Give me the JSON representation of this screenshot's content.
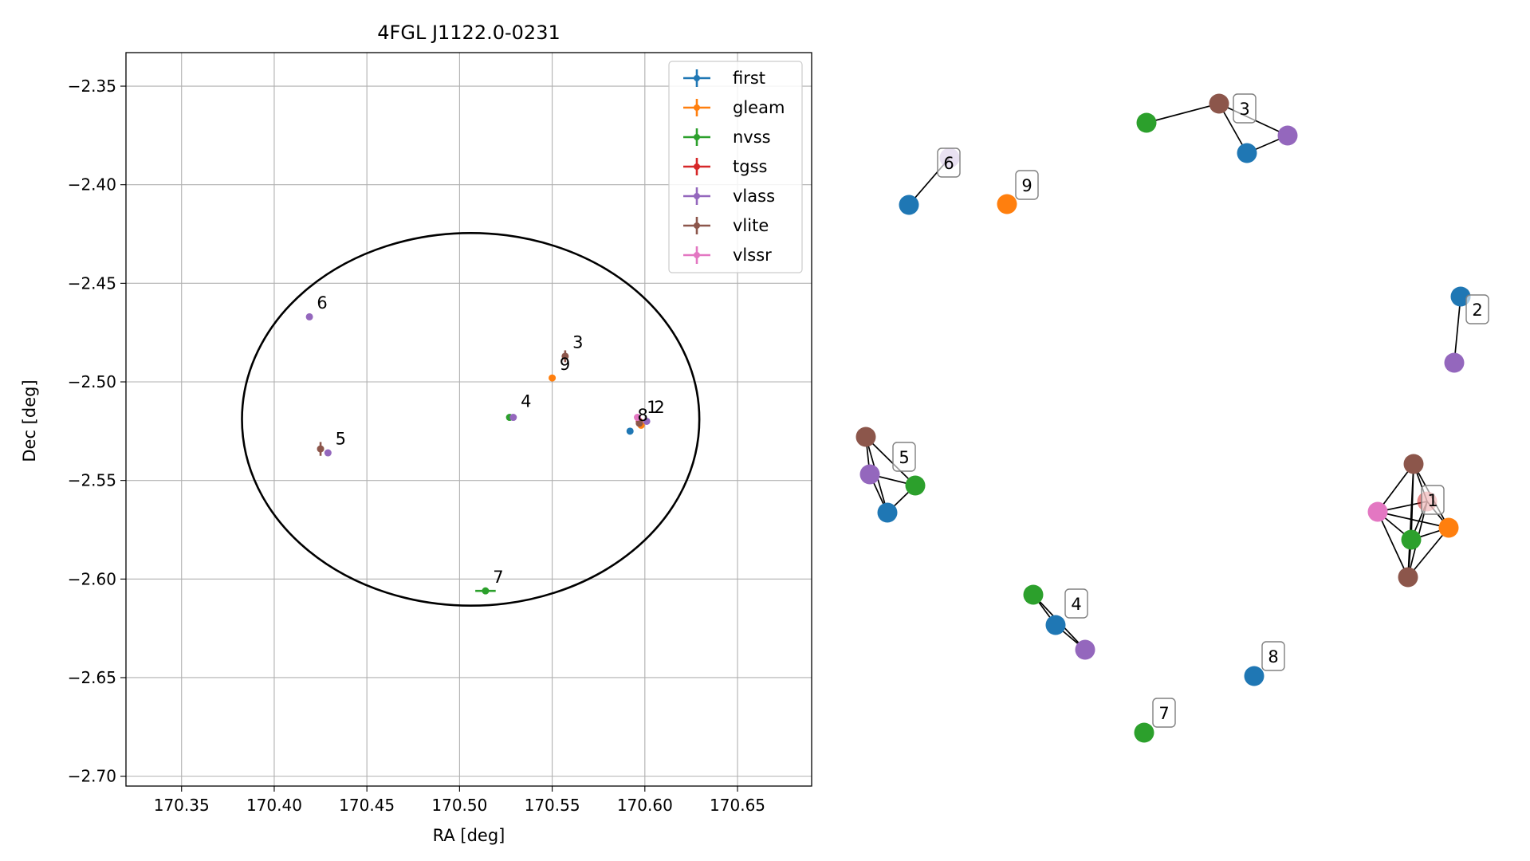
{
  "chart_data": [
    {
      "type": "scatter",
      "title": "4FGL J1122.0-0231",
      "xlabel": "RA [deg]",
      "ylabel": "Dec [deg]",
      "xlim": [
        170.32,
        170.69
      ],
      "ylim": [
        -2.705,
        -2.333
      ],
      "xticks": [
        170.35,
        170.4,
        170.45,
        170.5,
        170.55,
        170.6,
        170.65
      ],
      "xtick_labels": [
        "170.35",
        "170.40",
        "170.45",
        "170.50",
        "170.55",
        "170.60",
        "170.65"
      ],
      "yticks": [
        -2.35,
        -2.4,
        -2.45,
        -2.5,
        -2.55,
        -2.6,
        -2.65,
        -2.7
      ],
      "ytick_labels": [
        "−2.35",
        "−2.40",
        "−2.45",
        "−2.50",
        "−2.55",
        "−2.60",
        "−2.65",
        "−2.70"
      ],
      "grid": true,
      "legend_position": "top-right",
      "ellipse": {
        "center": [
          170.506,
          -2.519
        ],
        "semi_axis_ra": 0.1234,
        "semi_axis_dec": 0.0945
      },
      "series": [
        {
          "name": "first",
          "color": "#1f77b4",
          "points": [
            {
              "x": 170.592,
              "y": -2.525,
              "xerr": 0,
              "yerr": 0
            }
          ]
        },
        {
          "name": "gleam",
          "color": "#ff7f0e",
          "points": [
            {
              "x": 170.55,
              "y": -2.498,
              "xerr": 0,
              "yerr": 0
            },
            {
              "x": 170.598,
              "y": -2.522,
              "xerr": 0,
              "yerr": 0
            }
          ]
        },
        {
          "name": "nvss",
          "color": "#2ca02c",
          "points": [
            {
              "x": 170.527,
              "y": -2.518,
              "xerr": 0,
              "yerr": 0
            },
            {
              "x": 170.514,
              "y": -2.606,
              "xerr": 0.0055,
              "yerr": 0
            }
          ]
        },
        {
          "name": "tgss",
          "color": "#d62728",
          "points": [
            {
              "x": 170.597,
              "y": -2.52,
              "xerr": 0,
              "yerr": 0
            }
          ]
        },
        {
          "name": "vlass",
          "color": "#9467bd",
          "points": [
            {
              "x": 170.419,
              "y": -2.467,
              "xerr": 0,
              "yerr": 0
            },
            {
              "x": 170.429,
              "y": -2.536,
              "xerr": 0,
              "yerr": 0
            },
            {
              "x": 170.529,
              "y": -2.518,
              "xerr": 0,
              "yerr": 0
            },
            {
              "x": 170.601,
              "y": -2.52,
              "xerr": 0,
              "yerr": 0
            }
          ]
        },
        {
          "name": "vlite",
          "color": "#8c564b",
          "points": [
            {
              "x": 170.557,
              "y": -2.487,
              "xerr": 0,
              "yerr": 0.003
            },
            {
              "x": 170.425,
              "y": -2.534,
              "xerr": 0,
              "yerr": 0.0035
            },
            {
              "x": 170.597,
              "y": -2.521,
              "xerr": 0,
              "yerr": 0
            }
          ]
        },
        {
          "name": "vlssr",
          "color": "#e377c2",
          "points": [
            {
              "x": 170.596,
              "y": -2.518,
              "xerr": 0,
              "yerr": 0
            }
          ]
        }
      ],
      "annotations": [
        {
          "text": "6",
          "x": 170.423,
          "y": -2.46
        },
        {
          "text": "3",
          "x": 170.561,
          "y": -2.48
        },
        {
          "text": "9",
          "x": 170.554,
          "y": -2.491
        },
        {
          "text": "4",
          "x": 170.533,
          "y": -2.51
        },
        {
          "text": "8",
          "x": 170.596,
          "y": -2.517
        },
        {
          "text": "1",
          "x": 170.601,
          "y": -2.513
        },
        {
          "text": "2",
          "x": 170.605,
          "y": -2.513
        },
        {
          "text": "5",
          "x": 170.433,
          "y": -2.529
        },
        {
          "text": "7",
          "x": 170.518,
          "y": -2.599
        }
      ]
    },
    {
      "type": "network",
      "nodes": [
        {
          "id": "g6-first",
          "color": "#1f77b4"
        },
        {
          "id": "g6-vlass",
          "color": "#9467bd",
          "alpha": 0.5
        },
        {
          "id": "g9-gleam",
          "color": "#ff7f0e"
        },
        {
          "id": "g3-nvss",
          "color": "#2ca02c"
        },
        {
          "id": "g3-vlite",
          "color": "#8c564b"
        },
        {
          "id": "g3-first",
          "color": "#1f77b4"
        },
        {
          "id": "g3-vlass",
          "color": "#9467bd"
        },
        {
          "id": "g2-first",
          "color": "#1f77b4"
        },
        {
          "id": "g2-vlass",
          "color": "#9467bd"
        },
        {
          "id": "g5-vlite",
          "color": "#8c564b"
        },
        {
          "id": "g5-vlass",
          "color": "#9467bd"
        },
        {
          "id": "g5-nvss",
          "color": "#2ca02c"
        },
        {
          "id": "g5-first",
          "color": "#1f77b4"
        },
        {
          "id": "g1-vlite",
          "color": "#8c564b"
        },
        {
          "id": "g1-tgss",
          "color": "#d62728",
          "alpha": 0.55
        },
        {
          "id": "g1-vlssr",
          "color": "#e377c2"
        },
        {
          "id": "g1-nvss",
          "color": "#2ca02c"
        },
        {
          "id": "g1-gleam",
          "color": "#ff7f0e"
        },
        {
          "id": "g1-vlite2",
          "color": "#8c564b"
        },
        {
          "id": "g4-nvss",
          "color": "#2ca02c"
        },
        {
          "id": "g4-first",
          "color": "#1f77b4"
        },
        {
          "id": "g4-vlass",
          "color": "#9467bd"
        },
        {
          "id": "g8-first",
          "color": "#1f77b4"
        },
        {
          "id": "g7-nvss",
          "color": "#2ca02c"
        }
      ],
      "edges": [
        [
          "g6-first",
          "g6-vlass"
        ],
        [
          "g3-nvss",
          "g3-vlite"
        ],
        [
          "g3-vlite",
          "g3-first"
        ],
        [
          "g3-first",
          "g3-vlass"
        ],
        [
          "g3-vlite",
          "g3-vlass"
        ],
        [
          "g2-first",
          "g2-vlass"
        ],
        [
          "g5-vlite",
          "g5-vlass"
        ],
        [
          "g5-vlite",
          "g5-nvss"
        ],
        [
          "g5-vlite",
          "g5-first"
        ],
        [
          "g5-vlass",
          "g5-nvss"
        ],
        [
          "g5-vlass",
          "g5-first"
        ],
        [
          "g5-nvss",
          "g5-first"
        ],
        [
          "g1-vlite",
          "g1-tgss"
        ],
        [
          "g1-vlite",
          "g1-vlssr"
        ],
        [
          "g1-vlite",
          "g1-nvss"
        ],
        [
          "g1-vlite",
          "g1-gleam"
        ],
        [
          "g1-vlite",
          "g1-vlite2"
        ],
        [
          "g1-tgss",
          "g1-vlssr"
        ],
        [
          "g1-tgss",
          "g1-nvss"
        ],
        [
          "g1-tgss",
          "g1-gleam"
        ],
        [
          "g1-tgss",
          "g1-vlite2"
        ],
        [
          "g1-vlssr",
          "g1-nvss"
        ],
        [
          "g1-vlssr",
          "g1-gleam"
        ],
        [
          "g1-vlssr",
          "g1-vlite2"
        ],
        [
          "g1-nvss",
          "g1-gleam"
        ],
        [
          "g1-nvss",
          "g1-vlite2"
        ],
        [
          "g1-gleam",
          "g1-vlite2"
        ],
        [
          "g4-nvss",
          "g4-first"
        ],
        [
          "g4-first",
          "g4-vlass"
        ],
        [
          "g4-nvss",
          "g4-vlass"
        ]
      ],
      "labels": [
        {
          "text": "6"
        },
        {
          "text": "9"
        },
        {
          "text": "3"
        },
        {
          "text": "2"
        },
        {
          "text": "5"
        },
        {
          "text": "1"
        },
        {
          "text": "4"
        },
        {
          "text": "8"
        },
        {
          "text": "7"
        }
      ]
    }
  ]
}
